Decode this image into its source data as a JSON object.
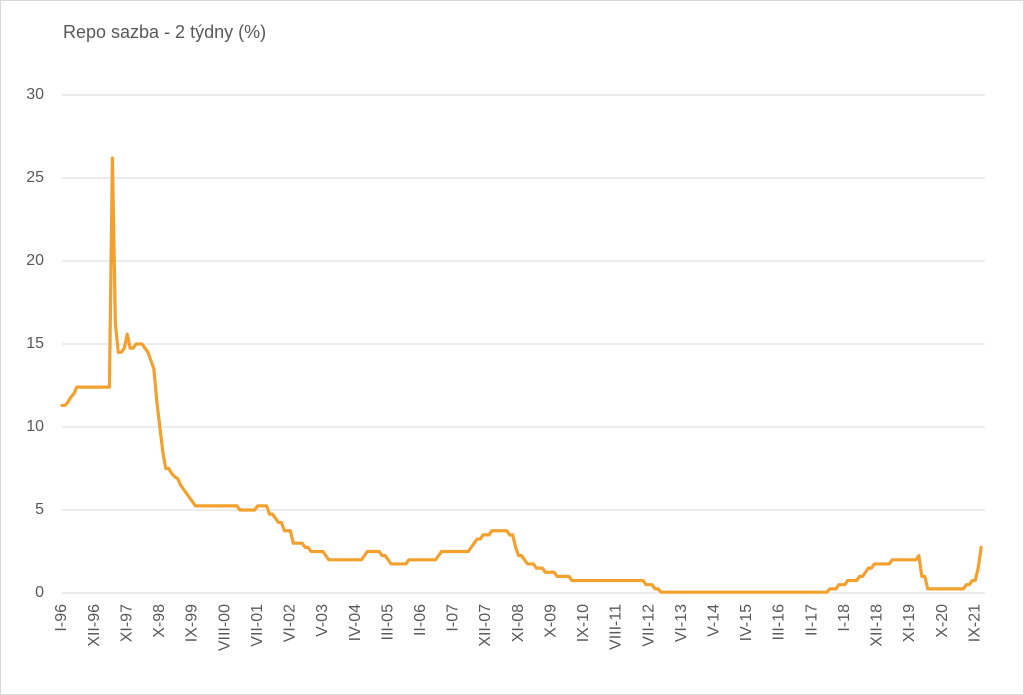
{
  "chart_data": {
    "type": "line",
    "title": "Repo sazba - 2 týdny (%)",
    "categories": [
      "I-96",
      null,
      null,
      null,
      null,
      null,
      null,
      null,
      null,
      null,
      null,
      "XII-96",
      null,
      null,
      null,
      null,
      null,
      null,
      null,
      null,
      null,
      null,
      "XI-97",
      null,
      null,
      null,
      null,
      null,
      null,
      null,
      null,
      null,
      null,
      "X-98",
      null,
      null,
      null,
      null,
      null,
      null,
      null,
      null,
      null,
      null,
      "IX-99",
      null,
      null,
      null,
      null,
      null,
      null,
      null,
      null,
      null,
      null,
      "VIII-00",
      null,
      null,
      null,
      null,
      null,
      null,
      null,
      null,
      null,
      null,
      "VII-01",
      null,
      null,
      null,
      null,
      null,
      null,
      null,
      null,
      null,
      null,
      "VI-02",
      null,
      null,
      null,
      null,
      null,
      null,
      null,
      null,
      null,
      null,
      "V-03",
      null,
      null,
      null,
      null,
      null,
      null,
      null,
      null,
      null,
      null,
      "IV-04",
      null,
      null,
      null,
      null,
      null,
      null,
      null,
      null,
      null,
      null,
      "III-05",
      null,
      null,
      null,
      null,
      null,
      null,
      null,
      null,
      null,
      null,
      "II-06",
      null,
      null,
      null,
      null,
      null,
      null,
      null,
      null,
      null,
      null,
      "I-07",
      null,
      null,
      null,
      null,
      null,
      null,
      null,
      null,
      null,
      null,
      "XII-07",
      null,
      null,
      null,
      null,
      null,
      null,
      null,
      null,
      null,
      null,
      "XI-08",
      null,
      null,
      null,
      null,
      null,
      null,
      null,
      null,
      null,
      null,
      "X-09",
      null,
      null,
      null,
      null,
      null,
      null,
      null,
      null,
      null,
      null,
      "IX-10",
      null,
      null,
      null,
      null,
      null,
      null,
      null,
      null,
      null,
      null,
      "VIII-11",
      null,
      null,
      null,
      null,
      null,
      null,
      null,
      null,
      null,
      null,
      "VII-12",
      null,
      null,
      null,
      null,
      null,
      null,
      null,
      null,
      null,
      null,
      "VI-13",
      null,
      null,
      null,
      null,
      null,
      null,
      null,
      null,
      null,
      null,
      "V-14",
      null,
      null,
      null,
      null,
      null,
      null,
      null,
      null,
      null,
      null,
      "IV-15",
      null,
      null,
      null,
      null,
      null,
      null,
      null,
      null,
      null,
      null,
      "III-16",
      null,
      null,
      null,
      null,
      null,
      null,
      null,
      null,
      null,
      null,
      "II-17",
      null,
      null,
      null,
      null,
      null,
      null,
      null,
      null,
      null,
      null,
      "I-18",
      null,
      null,
      null,
      null,
      null,
      null,
      null,
      null,
      null,
      null,
      "XII-18",
      null,
      null,
      null,
      null,
      null,
      null,
      null,
      null,
      null,
      null,
      "XI-19",
      null,
      null,
      null,
      null,
      null,
      null,
      null,
      null,
      null,
      null,
      "X-20",
      null,
      null,
      null,
      null,
      null,
      null,
      null,
      null,
      null,
      null,
      "IX-21",
      null,
      null
    ],
    "values": [
      11.3,
      11.3,
      11.5,
      11.8,
      12.0,
      12.4,
      12.4,
      12.4,
      12.4,
      12.4,
      12.4,
      12.4,
      12.4,
      12.4,
      12.4,
      12.4,
      12.4,
      26.2,
      16.2,
      14.5,
      14.5,
      14.75,
      15.6,
      14.75,
      14.75,
      15,
      15,
      15,
      14.75,
      14.5,
      14,
      13.5,
      11.5,
      10,
      8.5,
      7.5,
      7.5,
      7.2,
      7,
      6.9,
      6.5,
      6.25,
      6,
      5.75,
      5.5,
      5.25,
      5.25,
      5.25,
      5.25,
      5.25,
      5.25,
      5.25,
      5.25,
      5.25,
      5.25,
      5.25,
      5.25,
      5.25,
      5.25,
      5.25,
      5.0,
      5.0,
      5.0,
      5.0,
      5.0,
      5.0,
      5.25,
      5.25,
      5.25,
      5.25,
      4.75,
      4.75,
      4.5,
      4.25,
      4.25,
      3.75,
      3.75,
      3.75,
      3.0,
      3.0,
      3.0,
      3.0,
      2.75,
      2.75,
      2.5,
      2.5,
      2.5,
      2.5,
      2.5,
      2.25,
      2.0,
      2.0,
      2.0,
      2.0,
      2.0,
      2.0,
      2.0,
      2.0,
      2.0,
      2.0,
      2.0,
      2.0,
      2.25,
      2.5,
      2.5,
      2.5,
      2.5,
      2.5,
      2.25,
      2.25,
      2.0,
      1.75,
      1.75,
      1.75,
      1.75,
      1.75,
      1.75,
      2.0,
      2.0,
      2.0,
      2.0,
      2.0,
      2.0,
      2.0,
      2.0,
      2.0,
      2.0,
      2.25,
      2.5,
      2.5,
      2.5,
      2.5,
      2.5,
      2.5,
      2.5,
      2.5,
      2.5,
      2.5,
      2.75,
      3.0,
      3.25,
      3.25,
      3.5,
      3.5,
      3.5,
      3.75,
      3.75,
      3.75,
      3.75,
      3.75,
      3.75,
      3.5,
      3.5,
      2.75,
      2.25,
      2.25,
      2.0,
      1.75,
      1.75,
      1.75,
      1.5,
      1.5,
      1.5,
      1.25,
      1.25,
      1.25,
      1.25,
      1.0,
      1.0,
      1.0,
      1.0,
      1.0,
      0.75,
      0.75,
      0.75,
      0.75,
      0.75,
      0.75,
      0.75,
      0.75,
      0.75,
      0.75,
      0.75,
      0.75,
      0.75,
      0.75,
      0.75,
      0.75,
      0.75,
      0.75,
      0.75,
      0.75,
      0.75,
      0.75,
      0.75,
      0.75,
      0.75,
      0.5,
      0.5,
      0.5,
      0.25,
      0.25,
      0.05,
      0.05,
      0.05,
      0.05,
      0.05,
      0.05,
      0.05,
      0.05,
      0.05,
      0.05,
      0.05,
      0.05,
      0.05,
      0.05,
      0.05,
      0.05,
      0.05,
      0.05,
      0.05,
      0.05,
      0.05,
      0.05,
      0.05,
      0.05,
      0.05,
      0.05,
      0.05,
      0.05,
      0.05,
      0.05,
      0.05,
      0.05,
      0.05,
      0.05,
      0.05,
      0.05,
      0.05,
      0.05,
      0.05,
      0.05,
      0.05,
      0.05,
      0.05,
      0.05,
      0.05,
      0.05,
      0.05,
      0.05,
      0.05,
      0.05,
      0.05,
      0.05,
      0.05,
      0.05,
      0.05,
      0.05,
      0.05,
      0.25,
      0.25,
      0.25,
      0.5,
      0.5,
      0.5,
      0.75,
      0.75,
      0.75,
      0.75,
      1.0,
      1.0,
      1.25,
      1.5,
      1.5,
      1.75,
      1.75,
      1.75,
      1.75,
      1.75,
      1.75,
      2.0,
      2.0,
      2.0,
      2.0,
      2.0,
      2.0,
      2.0,
      2.0,
      2.0,
      2.25,
      1.0,
      1.0,
      0.25,
      0.25,
      0.25,
      0.25,
      0.25,
      0.25,
      0.25,
      0.25,
      0.25,
      0.25,
      0.25,
      0.25,
      0.25,
      0.5,
      0.5,
      0.75,
      0.75,
      1.5,
      2.75
    ],
    "color": "#f2a12e",
    "ylim": [
      0,
      30
    ],
    "yticks": [
      0,
      5,
      10,
      15,
      20,
      25,
      30
    ],
    "grid": true
  }
}
